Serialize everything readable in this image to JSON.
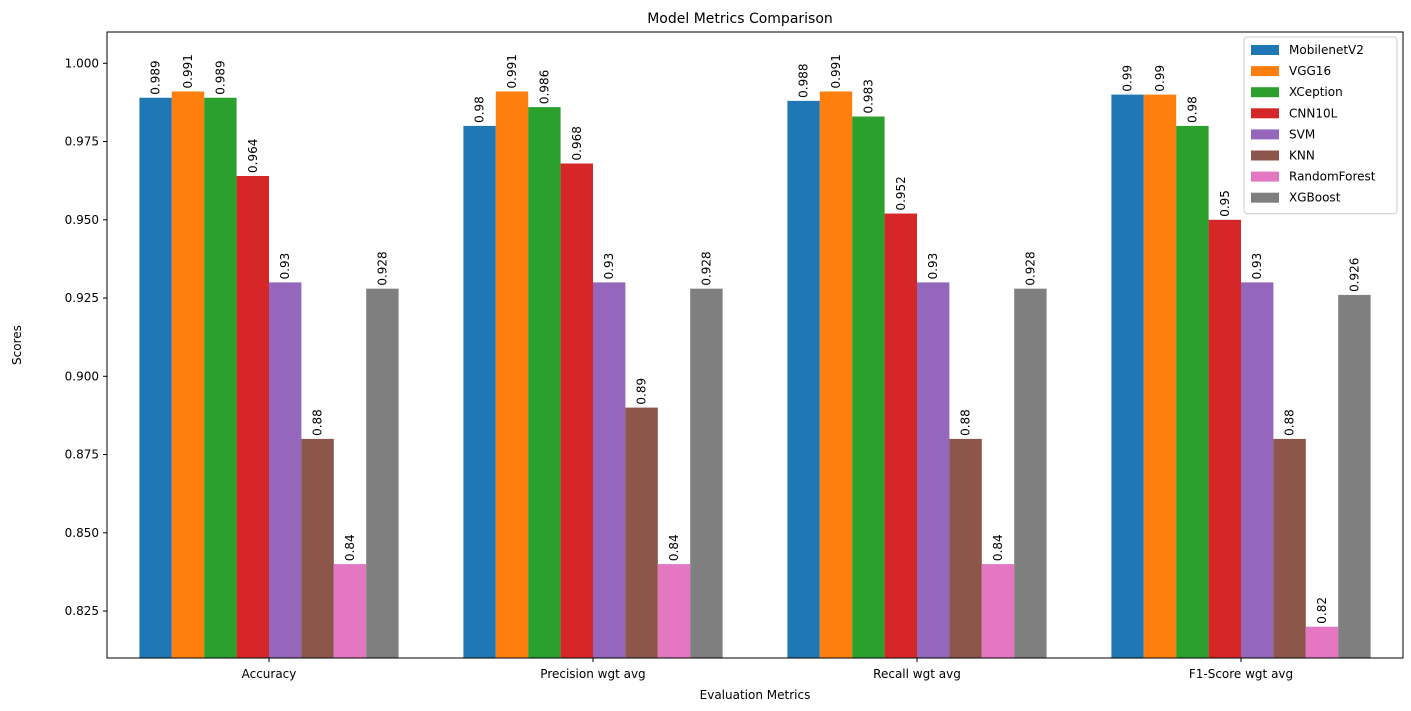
{
  "chart_data": {
    "type": "bar",
    "title": "Model Metrics Comparison",
    "xlabel": "Evaluation Metrics",
    "ylabel": "Scores",
    "ylim": [
      0.81,
      1.01
    ],
    "yticks": [
      0.825,
      0.85,
      0.875,
      0.9,
      0.925,
      0.95,
      0.975,
      1.0
    ],
    "ytick_labels": [
      "0.825",
      "0.850",
      "0.875",
      "0.900",
      "0.925",
      "0.950",
      "0.975",
      "1.000"
    ],
    "categories": [
      "Accuracy",
      "Precision wgt avg",
      "Recall wgt avg",
      "F1-Score wgt avg"
    ],
    "legend_position": "top-right",
    "grid": false,
    "series": [
      {
        "name": "MobilenetV2",
        "color": "#1f77b4",
        "values": [
          0.989,
          0.98,
          0.988,
          0.99
        ],
        "labels": [
          "0.989",
          "0.98",
          "0.988",
          "0.99"
        ]
      },
      {
        "name": "VGG16",
        "color": "#ff7f0e",
        "values": [
          0.991,
          0.991,
          0.991,
          0.99
        ],
        "labels": [
          "0.991",
          "0.991",
          "0.991",
          "0.99"
        ]
      },
      {
        "name": "XCeption",
        "color": "#2ca02c",
        "values": [
          0.989,
          0.986,
          0.983,
          0.98
        ],
        "labels": [
          "0.989",
          "0.986",
          "0.983",
          "0.98"
        ]
      },
      {
        "name": "CNN10L",
        "color": "#d62728",
        "values": [
          0.964,
          0.968,
          0.952,
          0.95
        ],
        "labels": [
          "0.964",
          "0.968",
          "0.952",
          "0.95"
        ]
      },
      {
        "name": "SVM",
        "color": "#9467bd",
        "values": [
          0.93,
          0.93,
          0.93,
          0.93
        ],
        "labels": [
          "0.93",
          "0.93",
          "0.93",
          "0.93"
        ]
      },
      {
        "name": "KNN",
        "color": "#8c564b",
        "values": [
          0.88,
          0.89,
          0.88,
          0.88
        ],
        "labels": [
          "0.88",
          "0.89",
          "0.88",
          "0.88"
        ]
      },
      {
        "name": "RandomForest",
        "color": "#e377c2",
        "values": [
          0.84,
          0.84,
          0.84,
          0.82
        ],
        "labels": [
          "0.84",
          "0.84",
          "0.84",
          "0.82"
        ]
      },
      {
        "name": "XGBoost",
        "color": "#7f7f7f",
        "values": [
          0.928,
          0.928,
          0.928,
          0.926
        ],
        "labels": [
          "0.928",
          "0.928",
          "0.928",
          "0.926"
        ]
      }
    ]
  }
}
